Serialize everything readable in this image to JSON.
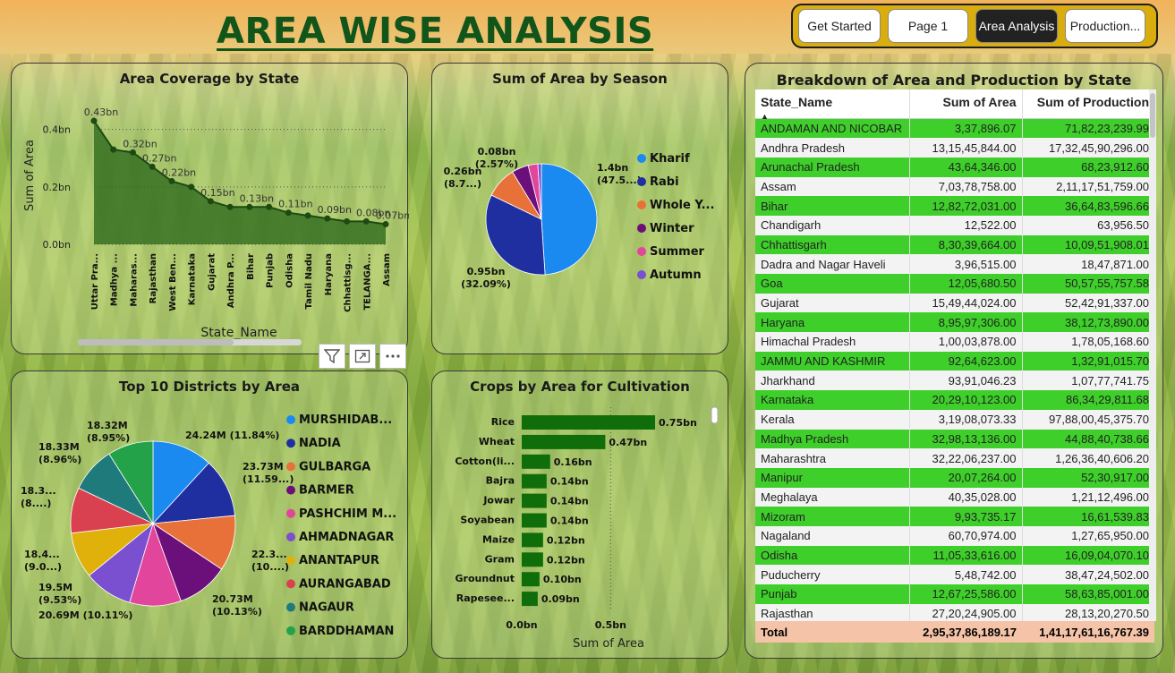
{
  "title": "AREA WISE ANALYSIS",
  "nav": [
    {
      "label": "Get Started",
      "active": false
    },
    {
      "label": "Page 1",
      "active": false
    },
    {
      "label": "Area Analysis",
      "active": true
    },
    {
      "label": "Production...",
      "active": false
    }
  ],
  "panels": {
    "state_coverage": "Area Coverage by State",
    "season": "Sum of Area by Season",
    "districts": "Top 10 Districts by Area",
    "crops": "Crops by Area for Cultivation",
    "breakdown": "Breakdown of Area and Production by State"
  },
  "toolbar_icons": [
    "filter-icon",
    "focus-mode-icon",
    "more-options-icon"
  ],
  "chart_data": [
    {
      "type": "area",
      "title": "Area Coverage by State",
      "xlabel": "State_Name",
      "ylabel": "Sum of Area",
      "ylim": [
        0,
        0.48
      ],
      "y_ticks": [
        "0.0bn",
        "0.2bn",
        "0.4bn"
      ],
      "categories": [
        "Uttar Pra...",
        "Madhya ...",
        "Maharas...",
        "Rajasthan",
        "West Ben...",
        "Karnataka",
        "Gujarat",
        "Andhra P...",
        "Bihar",
        "Punjab",
        "Odisha",
        "Tamil Nadu",
        "Haryana",
        "Chhattisg...",
        "TELANGA...",
        "Assam"
      ],
      "values": [
        0.43,
        0.33,
        0.32,
        0.27,
        0.22,
        0.2,
        0.15,
        0.13,
        0.13,
        0.13,
        0.11,
        0.1,
        0.09,
        0.08,
        0.08,
        0.07
      ],
      "labels": [
        "0.43bn",
        "",
        "0.32bn",
        "0.27bn",
        "0.22bn",
        "",
        "0.15bn",
        "",
        "0.13bn",
        "",
        "0.11bn",
        "",
        "0.09bn",
        "",
        "0.08bn",
        "0.07bn"
      ],
      "grid": true
    },
    {
      "type": "pie",
      "title": "Sum of Area by Season",
      "slices": [
        {
          "name": "Kharif",
          "value": 1.4,
          "label": "1.4bn",
          "pct": "(47.5...)",
          "color": "#1b8af0"
        },
        {
          "name": "Rabi",
          "value": 0.95,
          "label": "0.95bn",
          "pct": "(32.09%)",
          "color": "#1f2fa0"
        },
        {
          "name": "Whole Y...",
          "value": 0.26,
          "label": "0.26bn",
          "pct": "(8.7...)",
          "color": "#e8713a"
        },
        {
          "name": "Winter",
          "value": 0.14,
          "label": "",
          "pct": "",
          "color": "#6b0f7a"
        },
        {
          "name": "Summer",
          "value": 0.08,
          "label": "0.08bn",
          "pct": "(2.57%)",
          "color": "#e2469c"
        },
        {
          "name": "Autumn",
          "value": 0.03,
          "label": "",
          "pct": "",
          "color": "#7a4fd0"
        }
      ]
    },
    {
      "type": "pie",
      "title": "Top 10 Districts by Area",
      "slices": [
        {
          "name": "MURSHIDAB...",
          "value": 24.24,
          "label": "24.24M (11.84%)",
          "color": "#1b8af0"
        },
        {
          "name": "NADIA",
          "value": 23.73,
          "label": "23.73M (11.59...)",
          "color": "#1f2fa0"
        },
        {
          "name": "GULBARGA",
          "value": 22.3,
          "label": "22.3... (10....)",
          "color": "#e8713a"
        },
        {
          "name": "BARMER",
          "value": 20.73,
          "label": "20.73M (10.13%)",
          "color": "#6b0f7a"
        },
        {
          "name": "PASHCHIM M...",
          "value": 20.69,
          "label": "20.69M (10.11%)",
          "color": "#e2469c"
        },
        {
          "name": "AHMADNAGAR",
          "value": 19.5,
          "label": "19.5M (9.53%)",
          "color": "#7a4fd0"
        },
        {
          "name": "ANANTAPUR",
          "value": 18.4,
          "label": "18.4... (9.0...)",
          "color": "#e0b10a"
        },
        {
          "name": "AURANGABAD",
          "value": 18.3,
          "label": "18.3... (8....)",
          "color": "#da4150"
        },
        {
          "name": "NAGAUR",
          "value": 18.33,
          "label": "18.33M (8.96%)",
          "color": "#1f7a7c"
        },
        {
          "name": "BARDDHAMAN",
          "value": 18.32,
          "label": "18.32M (8.95%)",
          "color": "#24a24a"
        }
      ]
    },
    {
      "type": "bar",
      "title": "Crops by Area for Cultivation",
      "xlabel": "Sum of Area",
      "x_ticks": [
        "0.0bn",
        "0.5bn"
      ],
      "xlim": [
        0,
        0.78
      ],
      "categories": [
        "Rice",
        "Wheat",
        "Cotton(li...",
        "Bajra",
        "Jowar",
        "Soyabean",
        "Maize",
        "Gram",
        "Groundnut",
        "Rapesee..."
      ],
      "values": [
        0.75,
        0.47,
        0.16,
        0.14,
        0.14,
        0.14,
        0.12,
        0.12,
        0.1,
        0.09
      ],
      "labels": [
        "0.75bn",
        "0.47bn",
        "0.16bn",
        "0.14bn",
        "0.14bn",
        "0.14bn",
        "0.12bn",
        "0.12bn",
        "0.10bn",
        "0.09bn"
      ],
      "color": "#0f6e0a"
    }
  ],
  "table": {
    "headers": [
      "State_Name",
      "Sum of Area",
      "Sum of Production"
    ],
    "rows": [
      [
        "ANDAMAN AND NICOBAR",
        "3,37,896.07",
        "71,82,23,239.99"
      ],
      [
        "Andhra Pradesh",
        "13,15,45,844.00",
        "17,32,45,90,296.00"
      ],
      [
        "Arunachal Pradesh",
        "43,64,346.00",
        "68,23,912.60"
      ],
      [
        "Assam",
        "7,03,78,758.00",
        "2,11,17,51,759.00"
      ],
      [
        "Bihar",
        "12,82,72,031.00",
        "36,64,83,596.66"
      ],
      [
        "Chandigarh",
        "12,522.00",
        "63,956.50"
      ],
      [
        "Chhattisgarh",
        "8,30,39,664.00",
        "10,09,51,908.01"
      ],
      [
        "Dadra and Nagar Haveli",
        "3,96,515.00",
        "18,47,871.00"
      ],
      [
        "Goa",
        "12,05,680.50",
        "50,57,55,757.58"
      ],
      [
        "Gujarat",
        "15,49,44,024.00",
        "52,42,91,337.00"
      ],
      [
        "Haryana",
        "8,95,97,306.00",
        "38,12,73,890.00"
      ],
      [
        "Himachal Pradesh",
        "1,00,03,878.00",
        "1,78,05,168.60"
      ],
      [
        "JAMMU AND KASHMIR",
        "92,64,623.00",
        "1,32,91,015.70"
      ],
      [
        "Jharkhand",
        "93,91,046.23",
        "1,07,77,741.75"
      ],
      [
        "Karnataka",
        "20,29,10,123.00",
        "86,34,29,811.68"
      ],
      [
        "Kerala",
        "3,19,08,073.33",
        "97,88,00,45,375.70"
      ],
      [
        "Madhya Pradesh",
        "32,98,13,136.00",
        "44,88,40,738.66"
      ],
      [
        "Maharashtra",
        "32,22,06,237.00",
        "1,26,36,40,606.20"
      ],
      [
        "Manipur",
        "20,07,264.00",
        "52,30,917.00"
      ],
      [
        "Meghalaya",
        "40,35,028.00",
        "1,21,12,496.00"
      ],
      [
        "Mizoram",
        "9,93,735.17",
        "16,61,539.83"
      ],
      [
        "Nagaland",
        "60,70,974.00",
        "1,27,65,950.00"
      ],
      [
        "Odisha",
        "11,05,33,616.00",
        "16,09,04,070.10"
      ],
      [
        "Puducherry",
        "5,48,742.00",
        "38,47,24,502.00"
      ],
      [
        "Punjab",
        "12,67,25,586.00",
        "58,63,85,001.00"
      ],
      [
        "Rajasthan",
        "27,20,24,905.00",
        "28,13,20,270.50"
      ]
    ],
    "total": [
      "Total",
      "2,95,37,86,189.17",
      "1,41,17,61,16,767.39"
    ]
  }
}
